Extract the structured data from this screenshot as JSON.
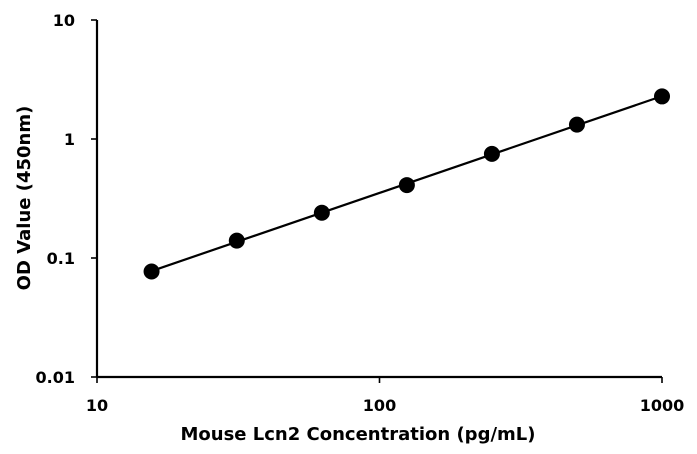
{
  "chart_data": {
    "type": "scatter",
    "xlabel": "Mouse Lcn2 Concentration (pg/mL)",
    "ylabel": "OD Value (450nm)",
    "xscale": "log",
    "yscale": "log",
    "xlim": [
      10,
      1000
    ],
    "ylim": [
      0.01,
      10
    ],
    "xticks": [
      "10",
      "100",
      "1000"
    ],
    "yticks": [
      "10",
      "1",
      "0.1",
      "0.01"
    ],
    "grid": false,
    "trendline": "power",
    "series": [
      {
        "x": [
          15.6,
          31.25,
          62.5,
          125,
          250,
          500,
          1000
        ],
        "y": [
          0.077,
          0.14,
          0.24,
          0.41,
          0.75,
          1.32,
          2.28
        ],
        "color": "#000000"
      }
    ]
  }
}
